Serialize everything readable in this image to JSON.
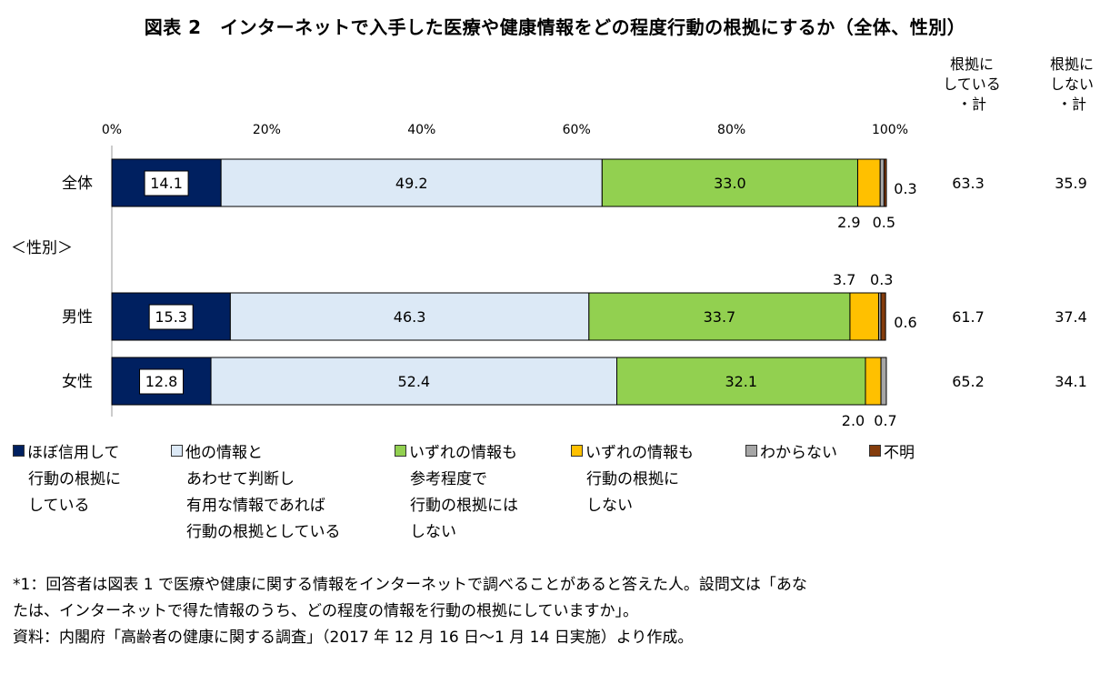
{
  "chart_data": {
    "type": "bar",
    "orientation": "horizontal-stacked-100",
    "title": "図表 2　インターネットで入手した医療や健康情報をどの程度行動の根拠にするか（全体、性別）",
    "xlim": [
      0,
      100
    ],
    "x_ticks": [
      "0%",
      "20%",
      "40%",
      "60%",
      "80%",
      "100%"
    ],
    "group_label": "＜性別＞",
    "categories": [
      "全体",
      "男性",
      "女性"
    ],
    "series": [
      {
        "name": "ほぼ信用して行動の根拠にしている",
        "color": "#002060",
        "values": [
          14.1,
          15.3,
          12.8
        ],
        "label_pos": [
          "boxed",
          "boxed",
          "boxed"
        ]
      },
      {
        "name": "他の情報とあわせて判断し有用な情報であれば行動の根拠としている",
        "color": "#DCE9F6",
        "values": [
          49.2,
          46.3,
          52.4
        ],
        "label_pos": [
          "inside",
          "inside",
          "inside"
        ]
      },
      {
        "name": "いずれの情報も参考程度で行動の根拠にはしない",
        "color": "#92D050",
        "values": [
          33.0,
          33.7,
          32.1
        ],
        "label_pos": [
          "inside",
          "inside",
          "inside"
        ]
      },
      {
        "name": "いずれの情報も行動の根拠にしない",
        "color": "#FFC000",
        "values": [
          2.9,
          3.7,
          2.0
        ],
        "label_pos": [
          "below",
          "above",
          "below"
        ]
      },
      {
        "name": "わからない",
        "color": "#A6A6A6",
        "values": [
          0.5,
          0.3,
          0.7
        ],
        "label_pos": [
          "below",
          "above",
          "below"
        ]
      },
      {
        "name": "不明",
        "color": "#843C0C",
        "values": [
          0.3,
          0.6,
          0.0
        ],
        "label_pos": [
          "right",
          "right",
          "none"
        ]
      }
    ],
    "summary_columns": [
      {
        "header": "根拠に\nしている\n・計",
        "values": [
          "63.3",
          "61.7",
          "65.2"
        ]
      },
      {
        "header": "根拠に\nしない\n・計",
        "values": [
          "35.9",
          "37.4",
          "34.1"
        ]
      }
    ],
    "legend": {
      "placement": "bottom",
      "items": [
        {
          "lines": [
            "ほぼ信用して",
            "行動の根拠に",
            "している"
          ],
          "color": "#002060"
        },
        {
          "lines": [
            "他の情報と",
            "あわせて判断し",
            "有用な情報であれば",
            "行動の根拠としている"
          ],
          "color": "#DCE9F6"
        },
        {
          "lines": [
            "いずれの情報も",
            "参考程度で",
            "行動の根拠には",
            "しない"
          ],
          "color": "#92D050"
        },
        {
          "lines": [
            "いずれの情報も",
            "行動の根拠に",
            "しない"
          ],
          "color": "#FFC000"
        },
        {
          "lines": [
            "わからない"
          ],
          "color": "#A6A6A6"
        },
        {
          "lines": [
            "不明"
          ],
          "color": "#843C0C"
        }
      ]
    }
  },
  "notes": [
    "*1：回答者は図表 1 で医療や健康に関する情報をインターネットで調べることがあると答えた人。設問文は「あな",
    "たは、インターネットで得た情報のうち、どの程度の情報を行動の根拠にしていますか」。",
    "資料：内閣府「高齢者の健康に関する調査」（2017 年 12 月 16 日～1 月 14 日実施）より作成。"
  ]
}
